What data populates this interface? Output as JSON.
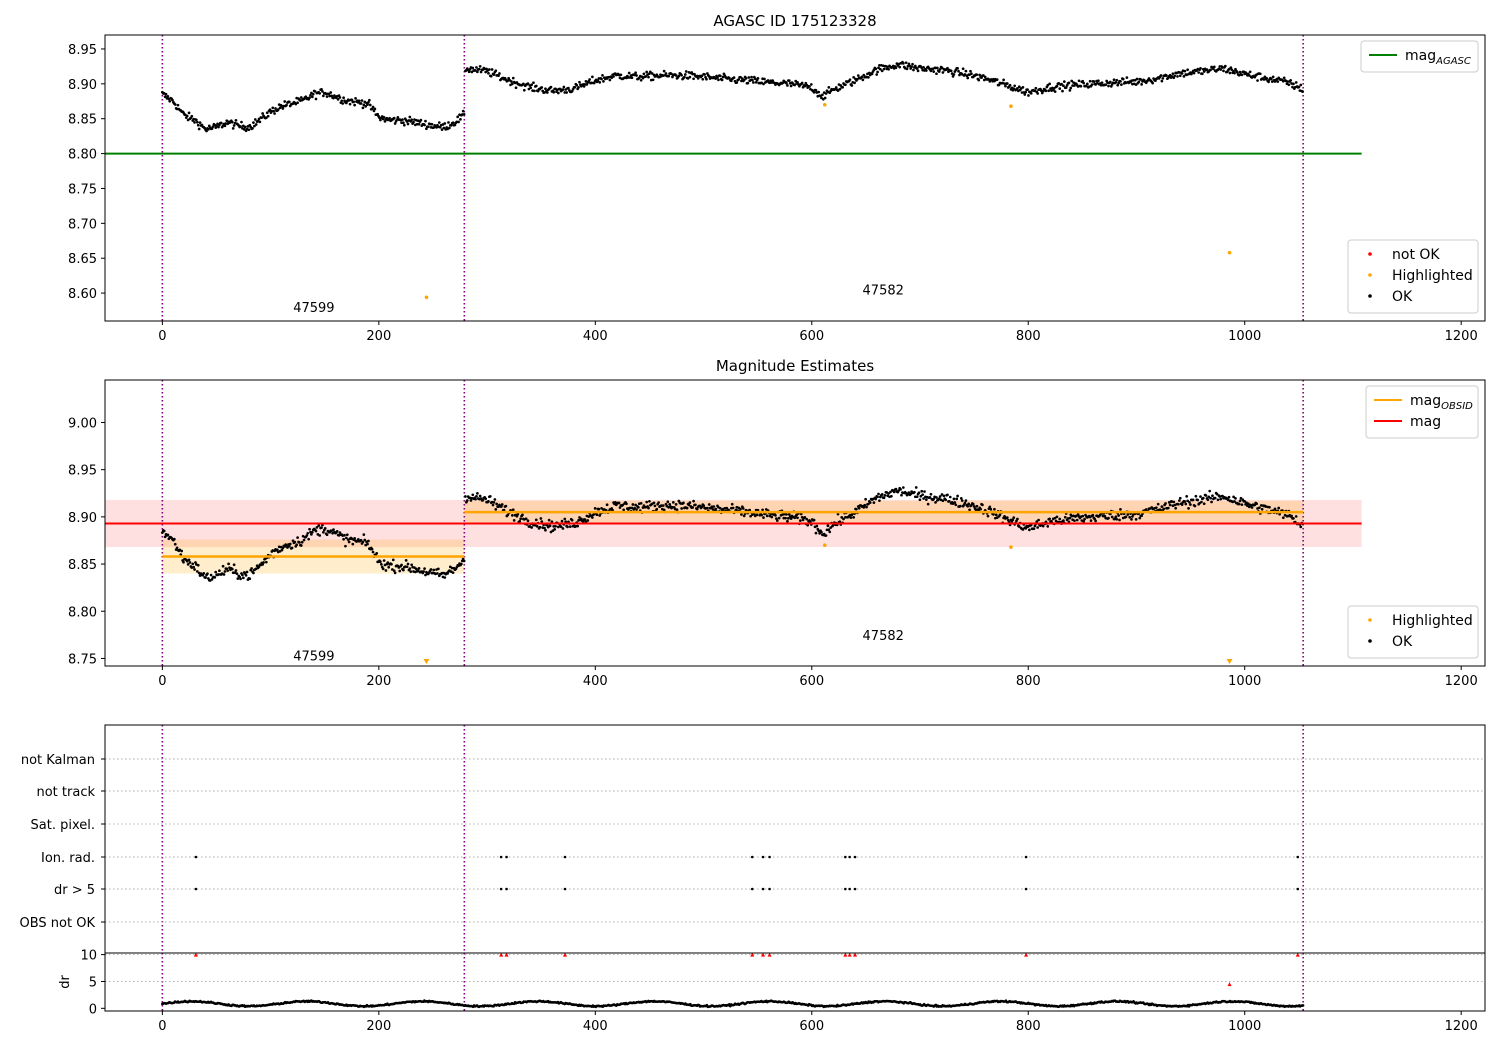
{
  "chart_data": [
    {
      "type": "scatter",
      "title": "AGASC ID 175123328",
      "xlabel": "",
      "ylabel": "",
      "xlim": [
        -53,
        1222
      ],
      "ylim": [
        8.56,
        8.97
      ],
      "xticks": [
        "0",
        "200",
        "400",
        "600",
        "800",
        "1000",
        "1200"
      ],
      "xtick_values": [
        0,
        200,
        400,
        600,
        800,
        1000,
        1200
      ],
      "yticks": [
        "8.60",
        "8.65",
        "8.70",
        "8.75",
        "8.80",
        "8.85",
        "8.90",
        "8.95"
      ],
      "ytick_values": [
        8.6,
        8.65,
        8.7,
        8.75,
        8.8,
        8.85,
        8.9,
        8.95
      ],
      "obsid_boundaries": [
        0,
        279,
        1054
      ],
      "obsid_labels": [
        {
          "label": "47599",
          "x": 140,
          "y": 8.58
        },
        {
          "label": "47582",
          "x": 666,
          "y": 8.605
        }
      ],
      "mag_agasc": {
        "value": 8.8,
        "x_range": [
          -53,
          1108
        ]
      },
      "ok_series": {
        "name": "OK",
        "segments": [
          {
            "x": [
              0,
              10,
              20,
              30,
              40,
              50,
              60,
              70,
              80,
              90,
              100,
              110,
              120,
              130,
              140,
              150,
              160,
              170,
              180,
              190,
              200,
              210,
              220,
              230,
              240,
              250,
              260,
              270,
              279
            ],
            "y": [
              8.885,
              8.875,
              8.855,
              8.848,
              8.835,
              8.838,
              8.845,
              8.84,
              8.838,
              8.848,
              8.86,
              8.868,
              8.872,
              8.876,
              8.885,
              8.888,
              8.882,
              8.876,
              8.874,
              8.872,
              8.852,
              8.848,
              8.848,
              8.846,
              8.843,
              8.84,
              8.838,
              8.845,
              8.855
            ]
          },
          {
            "x": [
              280,
              300,
              320,
              340,
              360,
              380,
              400,
              420,
              440,
              460,
              480,
              500,
              520,
              540,
              560,
              580,
              600,
              610,
              620,
              640,
              660,
              680,
              700,
              720,
              740,
              760,
              780,
              800,
              820,
              840,
              860,
              880,
              900,
              920,
              940,
              960,
              980,
              1000,
              1020,
              1040,
              1054
            ],
            "y": [
              8.922,
              8.918,
              8.905,
              8.895,
              8.89,
              8.893,
              8.905,
              8.912,
              8.91,
              8.912,
              8.912,
              8.91,
              8.907,
              8.905,
              8.902,
              8.9,
              8.895,
              8.882,
              8.892,
              8.905,
              8.92,
              8.928,
              8.922,
              8.92,
              8.915,
              8.908,
              8.898,
              8.888,
              8.895,
              8.898,
              8.9,
              8.902,
              8.903,
              8.908,
              8.915,
              8.918,
              8.922,
              8.914,
              8.908,
              8.902,
              8.892
            ]
          }
        ],
        "noise": 0.009
      },
      "highlighted": {
        "name": "Highlighted",
        "x": [
          244,
          612,
          784,
          986
        ],
        "y": [
          8.594,
          8.87,
          8.868,
          8.658
        ]
      },
      "not_ok": {
        "name": "not OK",
        "x": [],
        "y": []
      },
      "legends": [
        {
          "position": "top-right",
          "entries": [
            {
              "label": "mag",
              "sub": "AGASC",
              "kind": "line",
              "color": "#008000"
            }
          ]
        },
        {
          "position": "bottom-right",
          "entries": [
            {
              "label": "not OK",
              "kind": "dot",
              "color": "#ff0000"
            },
            {
              "label": "Highlighted",
              "kind": "dot",
              "color": "#ffa500"
            },
            {
              "label": "OK",
              "kind": "dot",
              "color": "#000000"
            }
          ]
        }
      ]
    },
    {
      "type": "scatter",
      "title": "Magnitude Estimates",
      "xlabel": "",
      "ylabel": "",
      "xlim": [
        -53,
        1222
      ],
      "ylim": [
        8.742,
        9.045
      ],
      "xticks": [
        "0",
        "200",
        "400",
        "600",
        "800",
        "1000",
        "1200"
      ],
      "xtick_values": [
        0,
        200,
        400,
        600,
        800,
        1000,
        1200
      ],
      "yticks": [
        "8.75",
        "8.80",
        "8.85",
        "8.90",
        "8.95",
        "9.00"
      ],
      "ytick_values": [
        8.75,
        8.8,
        8.85,
        8.9,
        8.95,
        9.0
      ],
      "obsid_boundaries": [
        0,
        279,
        1054
      ],
      "obsid_labels": [
        {
          "label": "47599",
          "x": 140,
          "y": 8.753
        },
        {
          "label": "47582",
          "x": 666,
          "y": 8.775
        }
      ],
      "mag": {
        "value": 8.893,
        "band": [
          8.868,
          8.918
        ],
        "x_range": [
          -53,
          1108
        ]
      },
      "mag_obsid": [
        {
          "x_range": [
            0,
            279
          ],
          "value": 8.858,
          "band": [
            8.84,
            8.876
          ]
        },
        {
          "x_range": [
            279,
            1054
          ],
          "value": 8.905,
          "band": [
            8.893,
            8.917
          ]
        }
      ],
      "highlighted_markers": {
        "x": [
          244,
          986
        ],
        "y": [
          8.748,
          8.748
        ]
      },
      "highlighted": {
        "name": "Highlighted",
        "x": [
          612,
          784
        ],
        "y": [
          8.87,
          8.868
        ]
      },
      "legends": [
        {
          "position": "top-right",
          "entries": [
            {
              "label": "mag",
              "sub": "OBSID",
              "kind": "line",
              "color": "#ffa500"
            },
            {
              "label": "mag",
              "kind": "line",
              "color": "#ff0000"
            }
          ]
        },
        {
          "position": "bottom-right",
          "entries": [
            {
              "label": "Highlighted",
              "kind": "dot",
              "color": "#ffa500"
            },
            {
              "label": "OK",
              "kind": "dot",
              "color": "#000000"
            }
          ]
        }
      ]
    },
    {
      "type": "scatter",
      "title": "",
      "xlabel": "",
      "ylabel": "",
      "xlim": [
        -53,
        1222
      ],
      "flag_rows": [
        "not Kalman",
        "not track",
        "Sat. pixel.",
        "Ion. rad.",
        "dr > 5",
        "OBS not OK"
      ],
      "obsid_boundaries": [
        0,
        279,
        1054
      ],
      "flag_events": {
        "Ion. rad.": [
          31,
          313,
          318,
          372,
          545,
          555,
          561,
          631,
          635,
          640,
          798,
          1049
        ],
        "dr > 5": [
          31,
          313,
          318,
          372,
          545,
          555,
          561,
          631,
          635,
          640,
          798,
          1049
        ]
      }
    },
    {
      "type": "scatter",
      "title": "",
      "xlabel": "",
      "ylabel": "dr",
      "xlim": [
        -53,
        1222
      ],
      "ylim": [
        -0.5,
        10.3
      ],
      "xticks": [
        "0",
        "200",
        "400",
        "600",
        "800",
        "1000",
        "1200"
      ],
      "xtick_values": [
        0,
        200,
        400,
        600,
        800,
        1000,
        1200
      ],
      "yticks": [
        "0",
        "5",
        "10"
      ],
      "ytick_values": [
        0,
        5,
        10
      ],
      "dr_baseline": {
        "x_range": [
          0,
          1054
        ],
        "mean": 0.85,
        "amplitude": 0.45
      },
      "dr_outliers_red": {
        "x": [
          31,
          313,
          318,
          372,
          545,
          555,
          561,
          631,
          635,
          640,
          798,
          1049,
          986
        ],
        "y": [
          10,
          10,
          10,
          10,
          10,
          10,
          10,
          10,
          10,
          10,
          10,
          10,
          4.5
        ]
      }
    }
  ],
  "colors": {
    "ok": "#000000",
    "highlighted": "#ffa500",
    "not_ok": "#ff0000",
    "agasc": "#008000",
    "boundary": "#800080",
    "mag": "#ff0000",
    "mag_obsid": "#ffa500"
  }
}
